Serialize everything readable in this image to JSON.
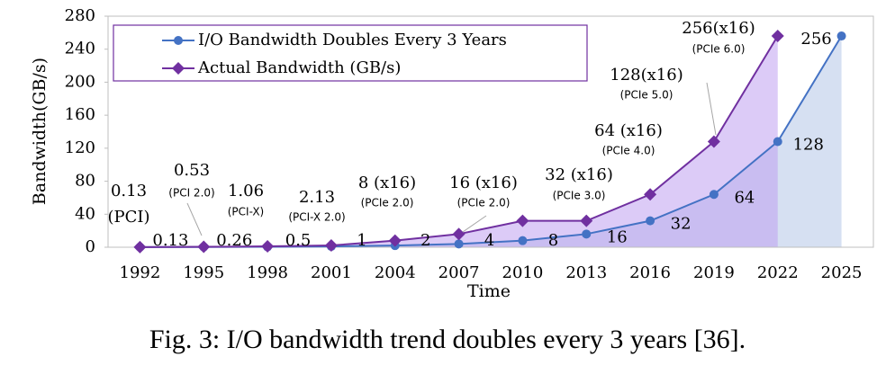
{
  "chart_data": {
    "type": "line",
    "caption": "Fig. 3: I/O bandwidth trend doubles every 3 years [36].",
    "xlabel": "Time",
    "ylabel": "Bandwidth(GB/s)",
    "categories": [
      "1992",
      "1995",
      "1998",
      "2001",
      "2004",
      "2007",
      "2010",
      "2013",
      "2016",
      "2019",
      "2022",
      "2025"
    ],
    "ylim": [
      0,
      280
    ],
    "yticks": [
      0,
      40,
      80,
      120,
      160,
      200,
      240,
      280
    ],
    "series": [
      {
        "name": "I/O Bandwidth Doubles Every 3 Years",
        "color": "#4472c4",
        "values": [
          0.13,
          0.26,
          0.5,
          1,
          2,
          4,
          8,
          16,
          32,
          64,
          128,
          256
        ]
      },
      {
        "name": "Actual Bandwidth (GB/s)",
        "color": "#7030a0",
        "values": [
          0.13,
          0.53,
          1.06,
          2.13,
          8,
          16,
          32,
          32,
          64,
          128,
          256,
          null
        ],
        "value_labels": [
          "0.13",
          "0.53",
          "1.06",
          "2.13",
          "8 (x16)",
          "16 (x16)",
          null,
          "32 (x16)",
          "64 (x16)",
          "128(x16)",
          "256(x16)",
          null
        ],
        "value_sublabels": [
          "(PCI)",
          "(PCI 2.0)",
          "(PCI-X)",
          "(PCI-X 2.0)",
          "(PCIe 2.0)",
          "(PCIe 2.0)",
          null,
          "(PCIe 3.0)",
          "(PCIe 4.0)",
          "(PCIe 5.0)",
          "(PCIe 6.0)",
          null
        ]
      }
    ]
  }
}
